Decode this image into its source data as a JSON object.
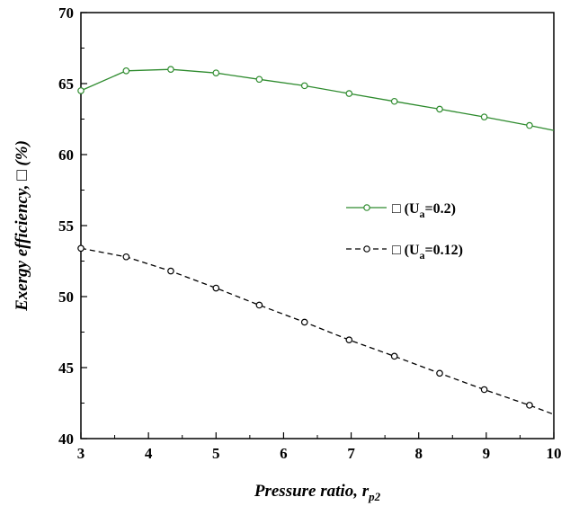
{
  "chart_data": {
    "type": "line",
    "title": "",
    "xlabel": "Pressure ratio, ",
    "xlabel_sub": "p2",
    "xlabel_var": "r",
    "ylabel": "Exergy efficiency, □ (%)",
    "xlim": [
      3,
      10
    ],
    "ylim": [
      40,
      70
    ],
    "xticks": [
      3,
      4,
      5,
      6,
      7,
      8,
      9,
      10
    ],
    "yticks": [
      40,
      45,
      50,
      55,
      60,
      65,
      70
    ],
    "grid": false,
    "legend_position": "middle-right",
    "series": [
      {
        "name": "□ (U",
        "name_sub": "a",
        "name_tail": "=0.2)",
        "color": "#2e8b2e",
        "line_style": "solid",
        "marker": "open-circle",
        "x": [
          3.0,
          3.67,
          4.33,
          5.0,
          5.64,
          6.31,
          6.97,
          7.64,
          8.31,
          8.97,
          9.64,
          10.0
        ],
        "y": [
          64.5,
          65.9,
          66.0,
          65.75,
          65.3,
          64.85,
          64.3,
          63.75,
          63.2,
          62.65,
          62.05,
          61.7
        ]
      },
      {
        "name": "□ (U",
        "name_sub": "a",
        "name_tail": "=0.12)",
        "color": "#000000",
        "line_style": "dashed",
        "marker": "open-circle",
        "x": [
          3.0,
          3.67,
          4.33,
          5.0,
          5.64,
          6.31,
          6.97,
          7.64,
          8.31,
          8.97,
          9.64,
          10.0
        ],
        "y": [
          53.4,
          52.8,
          51.8,
          50.6,
          49.4,
          48.2,
          46.95,
          45.8,
          44.6,
          43.45,
          42.35,
          41.7
        ]
      }
    ]
  }
}
